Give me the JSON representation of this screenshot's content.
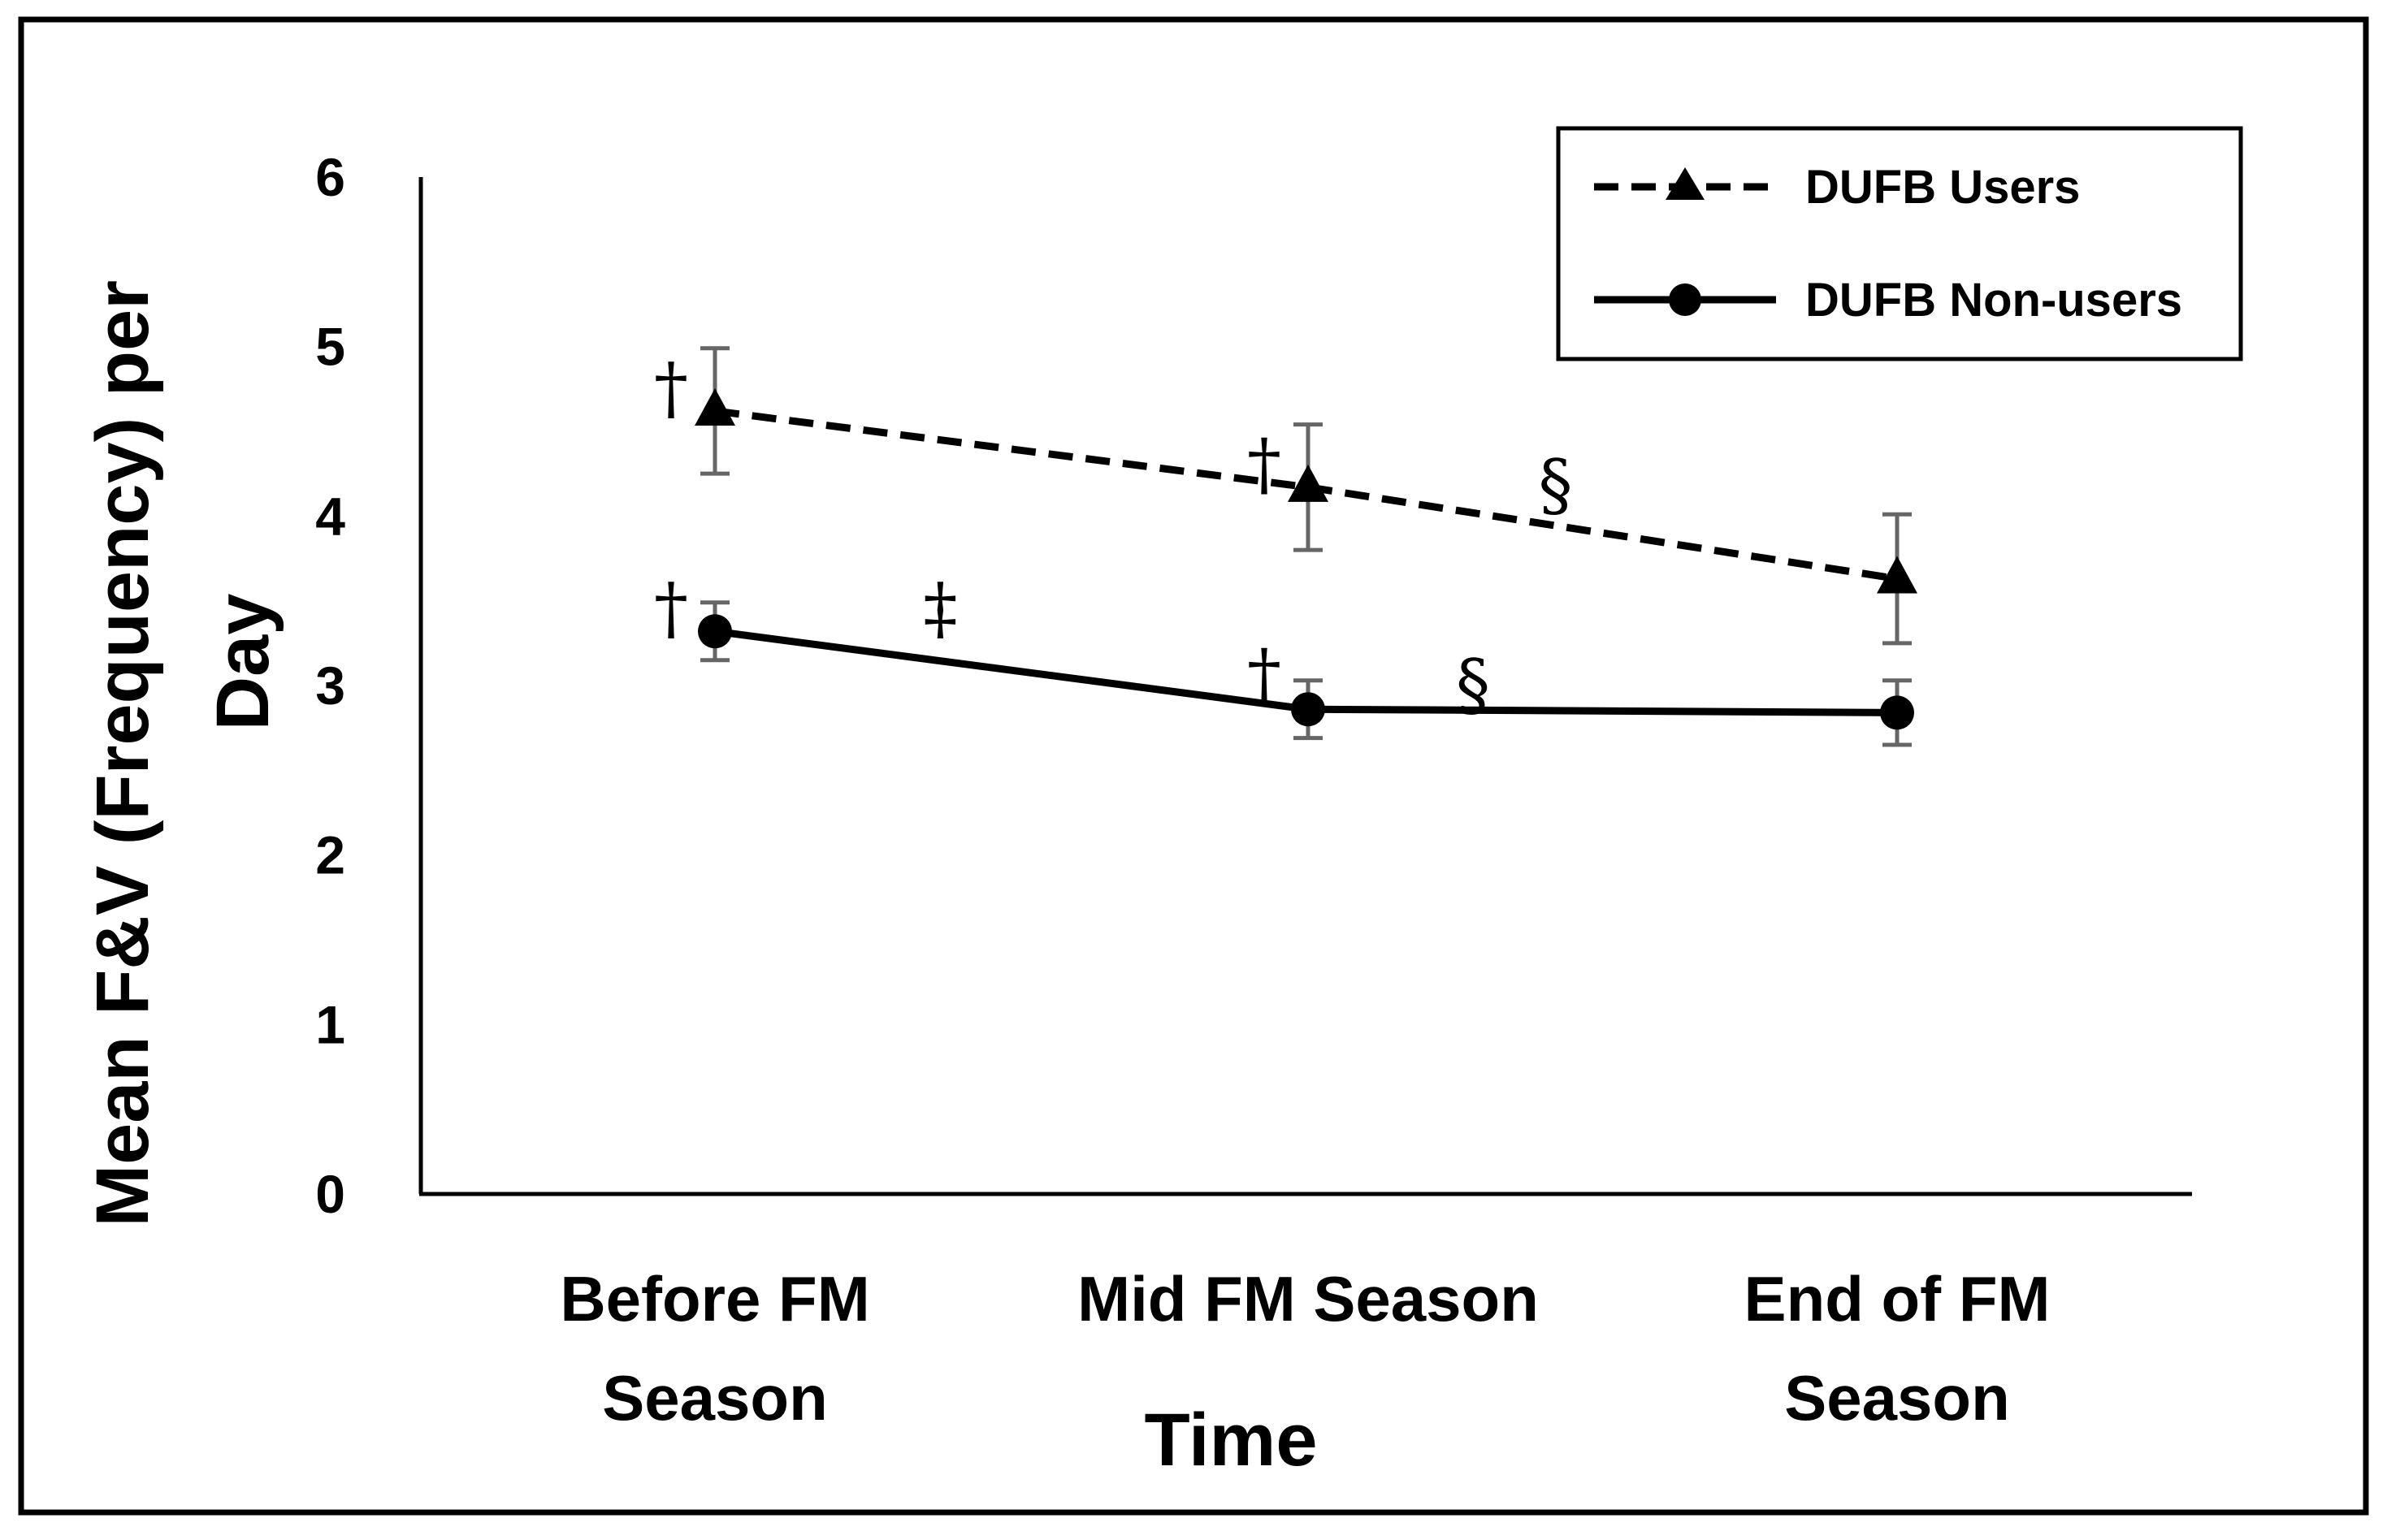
{
  "chart_data": {
    "type": "line",
    "title": "",
    "xlabel": "Time",
    "ylabel_lines": [
      "Mean F&V (Frequency) per",
      "Day"
    ],
    "categories": [
      [
        "Before FM",
        "Season"
      ],
      [
        "Mid FM Season"
      ],
      [
        "End of FM",
        "Season"
      ]
    ],
    "ylim": [
      0,
      6
    ],
    "yticks": [
      "0",
      "1",
      "2",
      "3",
      "4",
      "5",
      "6"
    ],
    "grid": false,
    "legend_position": "top-right",
    "series": [
      {
        "name": "DUFB Users",
        "values": [
          4.62,
          4.17,
          3.63
        ],
        "err_low": [
          4.25,
          3.8,
          3.25
        ],
        "err_high": [
          4.99,
          4.54,
          4.01
        ],
        "line_style": "dashed",
        "marker": "triangle",
        "color": "#000000"
      },
      {
        "name": "DUFB Non-users",
        "values": [
          3.32,
          2.86,
          2.84
        ],
        "err_low": [
          3.15,
          2.69,
          2.65
        ],
        "err_high": [
          3.49,
          3.03,
          3.03
        ],
        "line_style": "solid",
        "marker": "circle",
        "color": "#000000"
      }
    ],
    "annotations": [
      {
        "text": "†",
        "category_index": 0,
        "y": 4.75,
        "side": "left"
      },
      {
        "text": "†",
        "category_index": 1,
        "y": 4.3,
        "side": "left"
      },
      {
        "text": "§",
        "category_index": 1.42,
        "y": 4.18,
        "side": "center"
      },
      {
        "text": "†",
        "category_index": 0,
        "y": 3.45,
        "side": "left"
      },
      {
        "text": "‡",
        "category_index": 0.38,
        "y": 3.45,
        "side": "center"
      },
      {
        "text": "†",
        "category_index": 1,
        "y": 3.06,
        "side": "left"
      },
      {
        "text": "§",
        "category_index": 1.28,
        "y": 3.0,
        "side": "center"
      }
    ],
    "errorbar_color": "#666666"
  }
}
